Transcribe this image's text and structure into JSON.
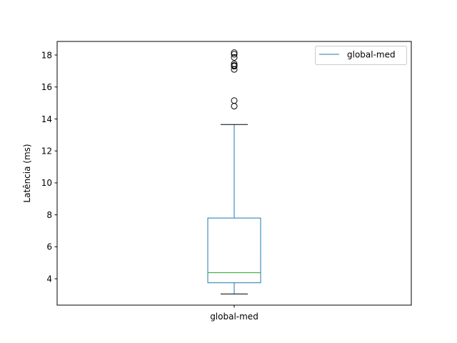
{
  "chart_data": {
    "type": "box",
    "title": "",
    "xlabel": "",
    "ylabel": "Latência (ms)",
    "categories": [
      "global-med"
    ],
    "ylim": [
      2.35,
      18.85
    ],
    "yticks": [
      4,
      6,
      8,
      10,
      12,
      14,
      16,
      18
    ],
    "ytick_labels": [
      "4",
      "6",
      "8",
      "10",
      "12",
      "14",
      "16",
      "18"
    ],
    "grid": false,
    "legend": {
      "placement": "top-right",
      "entries": [
        "global-med"
      ]
    },
    "series": [
      {
        "name": "global-med",
        "whisker_low": 3.05,
        "q1": 3.75,
        "median": 4.38,
        "q3": 7.8,
        "whisker_high": 13.65,
        "outliers": [
          14.8,
          15.15,
          17.1,
          17.3,
          17.35,
          17.45,
          17.85,
          18.05,
          18.15
        ]
      }
    ],
    "colors": {
      "box": "#1f77b4",
      "median": "#2ca02c",
      "whisker": "#1f77b4",
      "cap": "#000000",
      "flier": "#000000"
    }
  }
}
